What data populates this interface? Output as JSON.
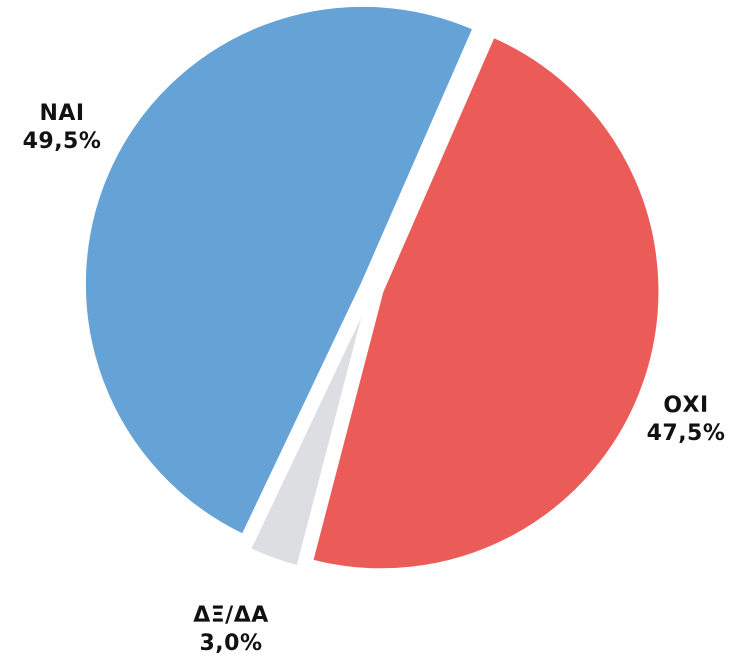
{
  "chart_data": {
    "type": "pie",
    "slices": [
      {
        "label": "NAI",
        "value": 49.5,
        "value_label": "49,5%",
        "color": "#65a2d6"
      },
      {
        "label": "ΟΧΙ",
        "value": 47.5,
        "value_label": "47,5%",
        "color": "#eb5b58"
      },
      {
        "label": "ΔΞ/ΔΑ",
        "value": 3.0,
        "value_label": "3,0%",
        "color": "#dddee1"
      }
    ],
    "title": "",
    "legend": "none",
    "exploded": true
  }
}
